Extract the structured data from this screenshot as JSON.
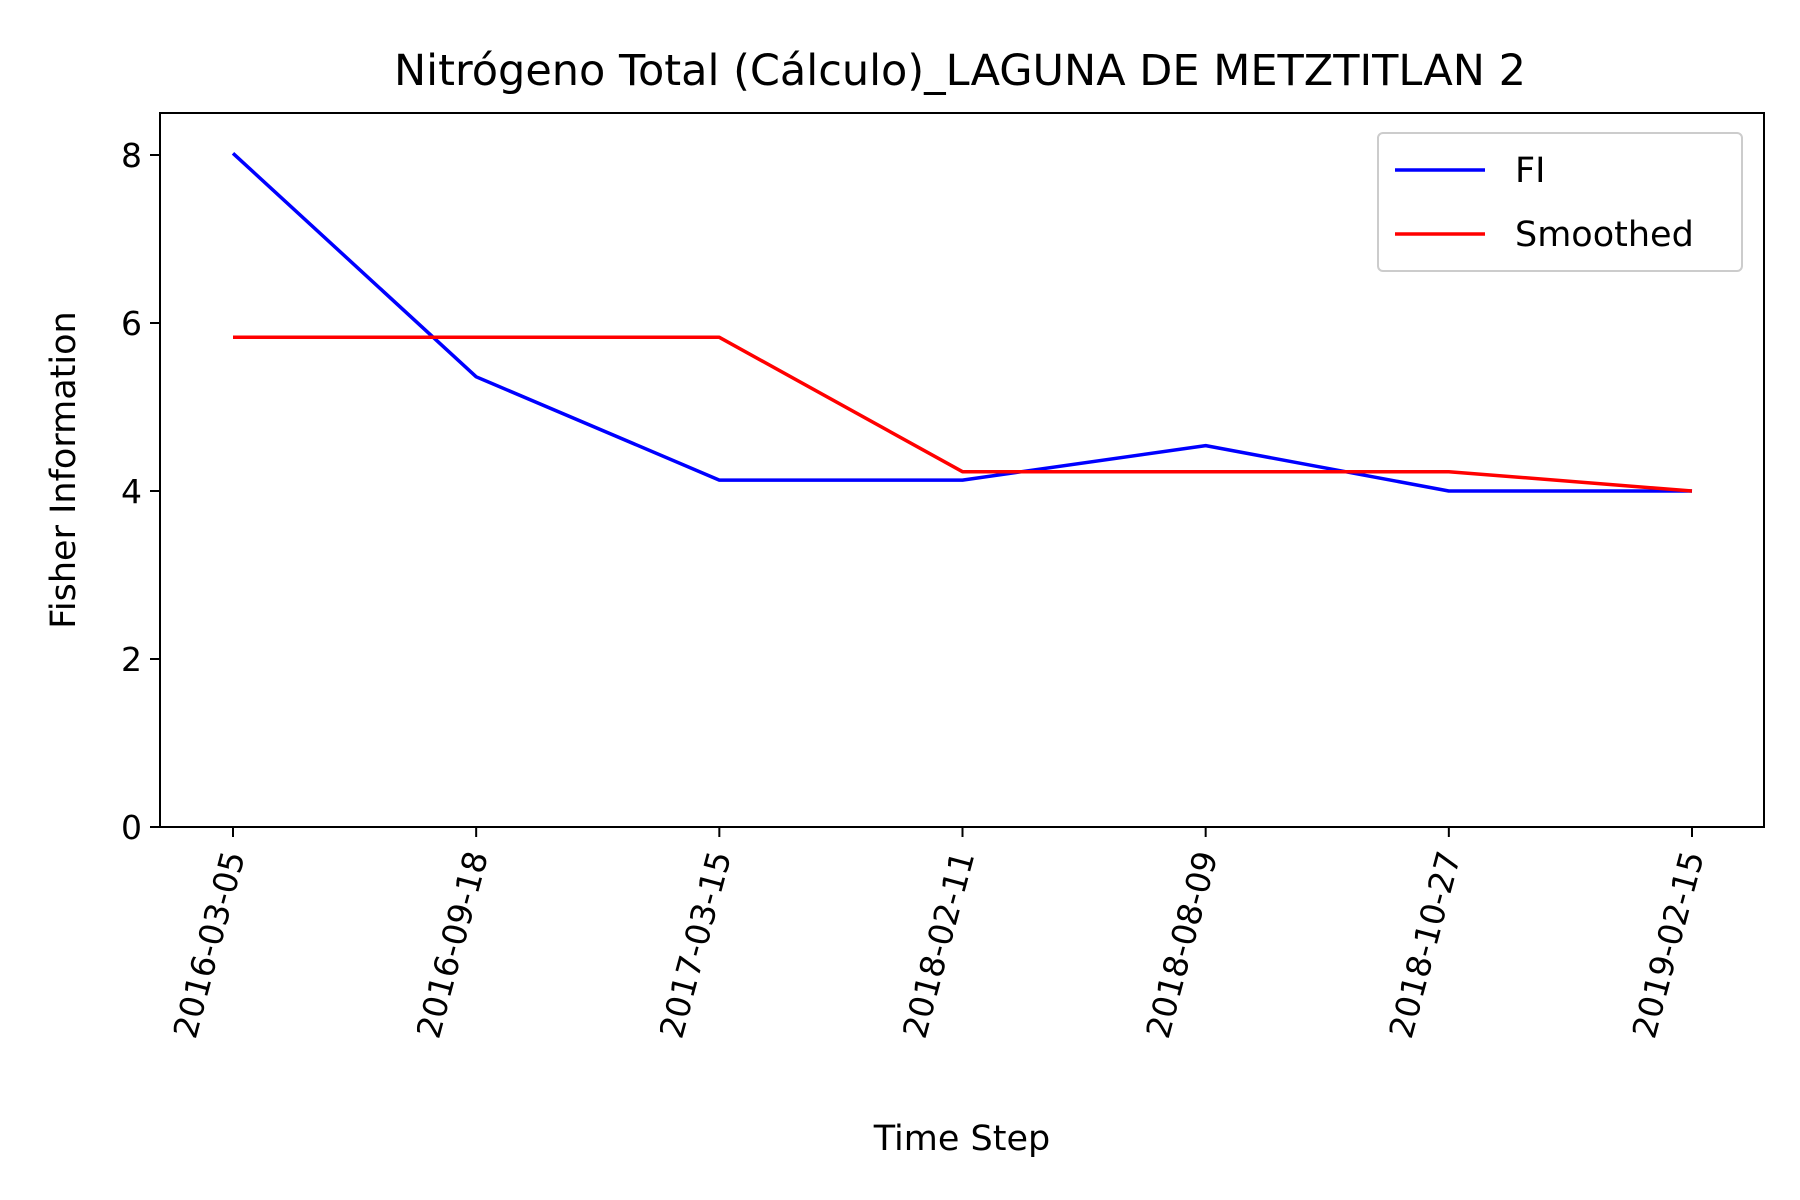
{
  "chart_data": {
    "type": "line",
    "title": "Nitrógeno Total (Cálculo)_LAGUNA DE METZTITLAN 2",
    "xlabel": "Time Step",
    "ylabel": "Fisher Information",
    "categories": [
      "2016-03-05",
      "2016-09-18",
      "2017-03-15",
      "2018-02-11",
      "2018-08-09",
      "2018-10-27",
      "2019-02-15"
    ],
    "ylim": [
      0,
      8.5
    ],
    "yticks": [
      "0",
      "2",
      "4",
      "6",
      "8"
    ],
    "series": [
      {
        "name": "FI",
        "color": "#0000ff",
        "values": [
          8.02,
          5.36,
          4.13,
          4.13,
          4.54,
          4.0,
          4.0
        ]
      },
      {
        "name": "Smoothed",
        "color": "#ff0000",
        "values": [
          5.83,
          5.83,
          5.83,
          4.23,
          4.23,
          4.23,
          4.0
        ]
      }
    ],
    "legend_position": "top-right",
    "grid": false
  }
}
